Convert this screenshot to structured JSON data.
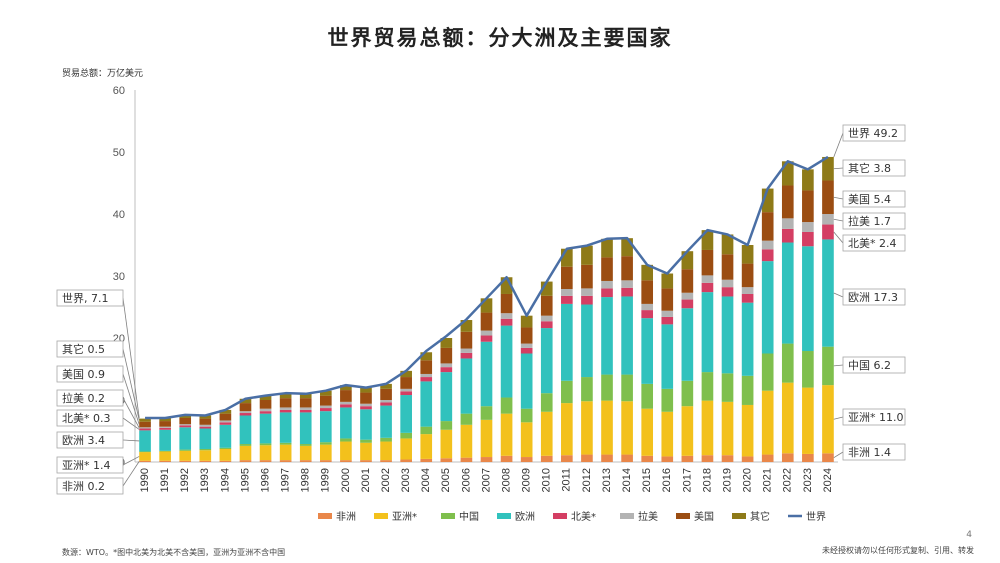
{
  "chart_data": {
    "type": "bar",
    "stacked": true,
    "title": "世界贸易总额：分大洲及主要国家",
    "ylabel": "贸易总额：万亿美元",
    "ylim": [
      0,
      60
    ],
    "yticks": [
      0,
      10,
      20,
      30,
      40,
      50,
      60
    ],
    "grid": false,
    "legend_position": "bottom",
    "categories": [
      "1990",
      "1991",
      "1992",
      "1993",
      "1994",
      "1995",
      "1996",
      "1997",
      "1998",
      "1999",
      "2000",
      "2001",
      "2002",
      "2003",
      "2004",
      "2005",
      "2006",
      "2007",
      "2008",
      "2009",
      "2010",
      "2011",
      "2012",
      "2013",
      "2014",
      "2015",
      "2016",
      "2017",
      "2018",
      "2019",
      "2020",
      "2021",
      "2022",
      "2023",
      "2024"
    ],
    "series": [
      {
        "name": "非洲",
        "color": "#e9874a",
        "values": [
          0.2,
          0.2,
          0.2,
          0.2,
          0.2,
          0.3,
          0.3,
          0.3,
          0.3,
          0.3,
          0.3,
          0.3,
          0.3,
          0.4,
          0.5,
          0.6,
          0.7,
          0.8,
          1.0,
          0.8,
          1.0,
          1.1,
          1.2,
          1.2,
          1.2,
          1.0,
          0.9,
          1.0,
          1.1,
          1.1,
          0.9,
          1.2,
          1.4,
          1.3,
          1.4
        ]
      },
      {
        "name": "亚洲*",
        "color": "#f3c11c",
        "values": [
          1.4,
          1.5,
          1.6,
          1.7,
          1.9,
          2.3,
          2.4,
          2.5,
          2.3,
          2.5,
          3.0,
          2.8,
          3.0,
          3.4,
          4.0,
          4.6,
          5.3,
          6.0,
          6.8,
          5.6,
          7.1,
          8.4,
          8.6,
          8.7,
          8.6,
          7.6,
          7.2,
          8.0,
          8.8,
          8.6,
          8.3,
          10.3,
          11.4,
          10.7,
          11.0
        ]
      },
      {
        "name": "中国",
        "color": "#7fbf4d",
        "values": [
          0.1,
          0.1,
          0.2,
          0.2,
          0.2,
          0.3,
          0.3,
          0.3,
          0.3,
          0.4,
          0.5,
          0.5,
          0.6,
          0.9,
          1.2,
          1.4,
          1.8,
          2.2,
          2.6,
          2.2,
          3.0,
          3.6,
          3.9,
          4.2,
          4.3,
          4.0,
          3.7,
          4.1,
          4.6,
          4.6,
          4.7,
          6.0,
          6.3,
          5.9,
          6.2
        ]
      },
      {
        "name": "欧洲",
        "color": "#31c2bd",
        "values": [
          3.4,
          3.4,
          3.6,
          3.3,
          3.7,
          4.6,
          4.8,
          4.9,
          5.1,
          5.0,
          5.0,
          4.9,
          5.2,
          6.1,
          7.3,
          7.9,
          8.9,
          10.4,
          11.6,
          8.9,
          10.5,
          12.4,
          11.7,
          12.5,
          12.6,
          10.6,
          10.4,
          11.7,
          12.9,
          12.4,
          11.8,
          14.9,
          16.3,
          16.9,
          17.3
        ]
      },
      {
        "name": "北美*",
        "color": "#d43e63",
        "values": [
          0.3,
          0.3,
          0.3,
          0.3,
          0.4,
          0.4,
          0.4,
          0.4,
          0.4,
          0.5,
          0.5,
          0.5,
          0.5,
          0.6,
          0.7,
          0.8,
          0.9,
          1.0,
          1.1,
          0.9,
          1.1,
          1.3,
          1.4,
          1.4,
          1.4,
          1.3,
          1.2,
          1.4,
          1.5,
          1.5,
          1.4,
          1.9,
          2.2,
          2.3,
          2.4
        ]
      },
      {
        "name": "拉美",
        "color": "#b3b3b3",
        "values": [
          0.2,
          0.2,
          0.2,
          0.3,
          0.3,
          0.3,
          0.4,
          0.4,
          0.4,
          0.4,
          0.4,
          0.4,
          0.4,
          0.4,
          0.5,
          0.6,
          0.7,
          0.8,
          0.9,
          0.7,
          0.9,
          1.1,
          1.2,
          1.2,
          1.2,
          1.0,
          1.0,
          1.1,
          1.2,
          1.2,
          1.1,
          1.4,
          1.7,
          1.6,
          1.7
        ]
      },
      {
        "name": "美国",
        "color": "#9b4d12",
        "values": [
          0.9,
          0.9,
          1.0,
          1.0,
          1.1,
          1.3,
          1.4,
          1.5,
          1.5,
          1.6,
          1.9,
          1.8,
          1.8,
          1.9,
          2.2,
          2.5,
          2.7,
          2.9,
          3.1,
          2.6,
          3.2,
          3.6,
          3.8,
          3.8,
          3.9,
          3.8,
          3.6,
          3.8,
          4.1,
          4.1,
          3.8,
          4.6,
          5.3,
          5.1,
          5.4
        ]
      },
      {
        "name": "其它",
        "color": "#8e7a18",
        "values": [
          0.5,
          0.5,
          0.5,
          0.5,
          0.6,
          0.7,
          0.7,
          0.8,
          0.7,
          0.8,
          0.8,
          0.8,
          0.8,
          1.0,
          1.3,
          1.6,
          1.9,
          2.3,
          2.7,
          1.9,
          2.3,
          2.9,
          3.1,
          3.0,
          2.9,
          2.5,
          2.4,
          2.9,
          3.2,
          3.2,
          3.0,
          3.8,
          3.9,
          3.4,
          3.8
        ]
      }
    ],
    "line": {
      "name": "世界",
      "color": "#4a6fa5",
      "values": [
        7.1,
        7.1,
        7.6,
        7.5,
        8.4,
        10.2,
        10.7,
        11.1,
        11.0,
        11.5,
        12.4,
        12.0,
        12.6,
        14.7,
        17.9,
        20.3,
        23.0,
        26.4,
        29.8,
        23.6,
        29.1,
        34.4,
        34.9,
        36.0,
        36.1,
        31.8,
        30.4,
        34.0,
        37.4,
        36.7,
        35.0,
        44.1,
        48.5,
        47.2,
        49.2
      ]
    },
    "left_labels": [
      {
        "text": "世界, 7.1",
        "series": "世界"
      },
      {
        "text": "其它 0.5",
        "series": "其它"
      },
      {
        "text": "美国 0.9",
        "series": "美国"
      },
      {
        "text": "拉美 0.2",
        "series": "拉美"
      },
      {
        "text": "北美* 0.3",
        "series": "北美*"
      },
      {
        "text": "欧洲 3.4",
        "series": "欧洲"
      },
      {
        "text": "亚洲* 1.4",
        "series": "亚洲*"
      },
      {
        "text": "非洲 0.2",
        "series": "非洲"
      }
    ],
    "right_labels": [
      {
        "text": "世界 49.2",
        "series": "世界"
      },
      {
        "text": "其它 3.8",
        "series": "其它"
      },
      {
        "text": "美国 5.4",
        "series": "美国"
      },
      {
        "text": "拉美 1.7",
        "series": "拉美"
      },
      {
        "text": "北美* 2.4",
        "series": "北美*"
      },
      {
        "text": "欧洲 17.3",
        "series": "欧洲"
      },
      {
        "text": "中国 6.2",
        "series": "中国"
      },
      {
        "text": "亚洲* 11.0",
        "series": "亚洲*"
      },
      {
        "text": "非洲 1.4",
        "series": "非洲"
      }
    ]
  },
  "footer": {
    "source": "数源：WTO。*图中北美为北美不含美国，亚洲为亚洲不含中国",
    "note": "未经授权请勿以任何形式复制、引用、转发",
    "page": "4"
  },
  "colors": {
    "axis": "#bfbfbf",
    "label_border": "#a6a6a6",
    "leader": "#7f7f7f"
  }
}
